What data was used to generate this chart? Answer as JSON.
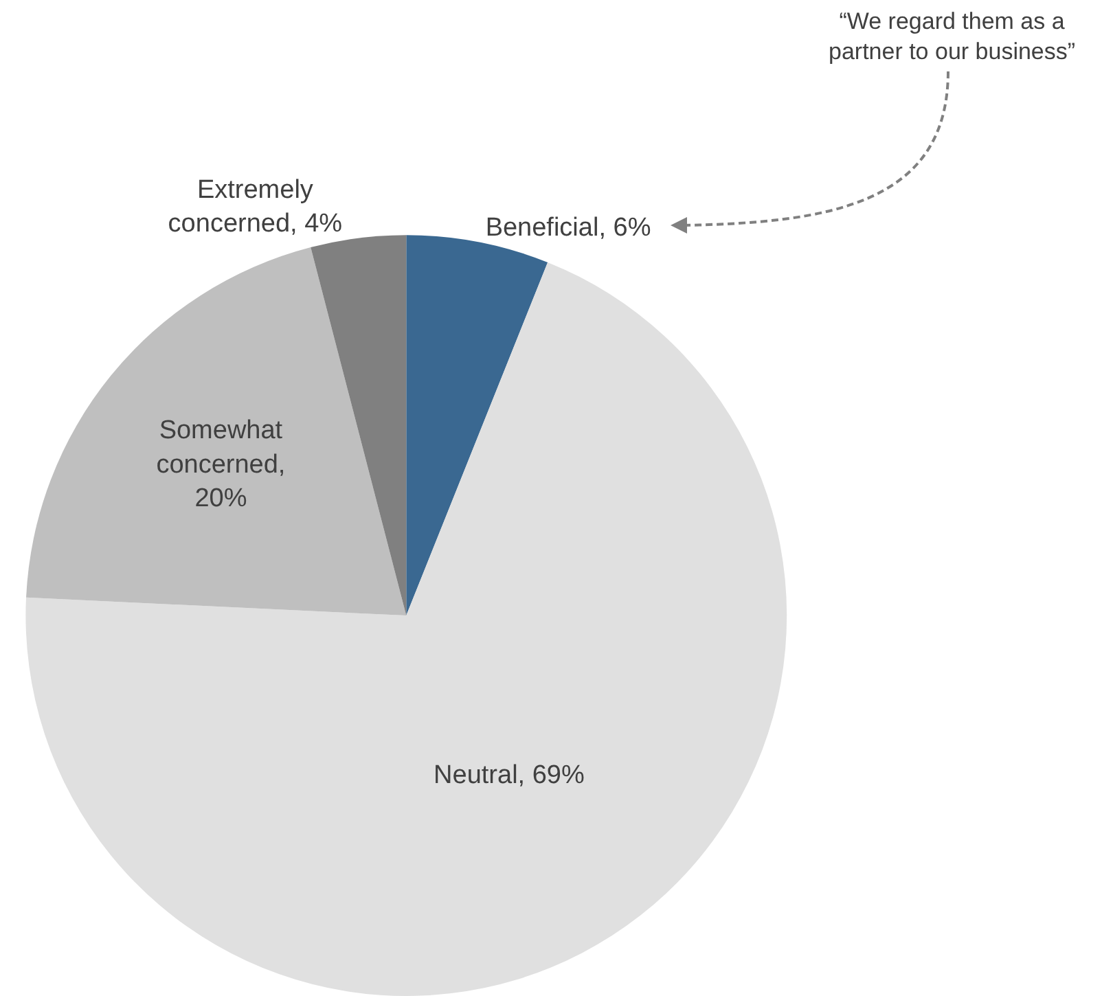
{
  "chart_data": {
    "type": "pie",
    "categories": [
      "Beneficial",
      "Neutral",
      "Somewhat concerned",
      "Extremely concerned"
    ],
    "values": [
      6,
      69,
      20,
      4
    ],
    "colors": [
      "#3a6891",
      "#e0e0e0",
      "#bfbfbf",
      "#808080"
    ],
    "value_labels": [
      ", 6%",
      ", 69%",
      ", 20%",
      ", 4%"
    ],
    "annotations": [
      "“We regard them as a\npartner to our business”"
    ],
    "legend": false
  }
}
